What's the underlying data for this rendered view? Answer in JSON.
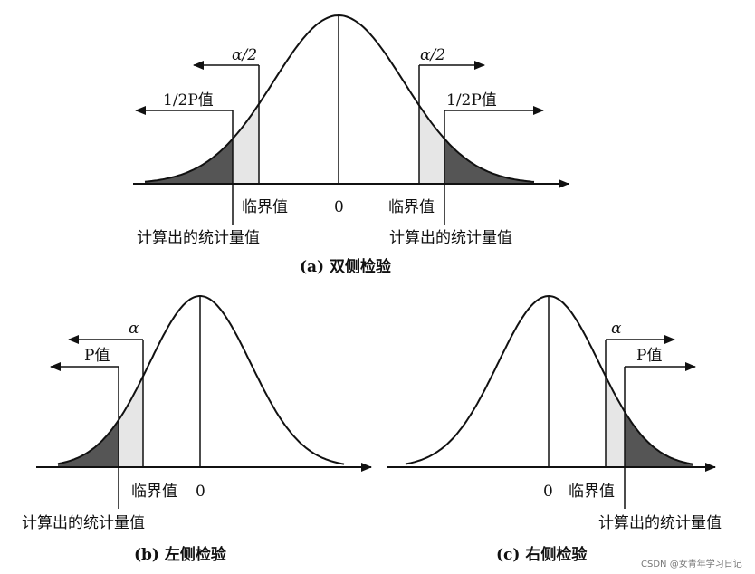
{
  "panels": [
    {
      "id": "a",
      "caption": "(a)  双侧检验",
      "zero_label": "0",
      "left_alpha": "α/2",
      "right_alpha": "α/2",
      "left_p": "1/2P值",
      "right_p": "1/2P值",
      "left_critical": "临界值",
      "right_critical": "临界值",
      "left_statistic": "计算出的统计量值",
      "right_statistic": "计算出的统计量值"
    },
    {
      "id": "b",
      "caption": "(b)  左侧检验",
      "zero_label": "0",
      "alpha": "α",
      "p": "P值",
      "critical": "临界值",
      "statistic": "计算出的统计量值"
    },
    {
      "id": "c",
      "caption": "(c)  右侧检验",
      "zero_label": "0",
      "alpha": "α",
      "p": "P值",
      "critical": "临界值",
      "statistic": "计算出的统计量值"
    }
  ],
  "watermark": "CSDN @女青年学习日记",
  "colors": {
    "ink": "#111111",
    "shade": "#555555",
    "light_shade": "#e6e6e6"
  }
}
